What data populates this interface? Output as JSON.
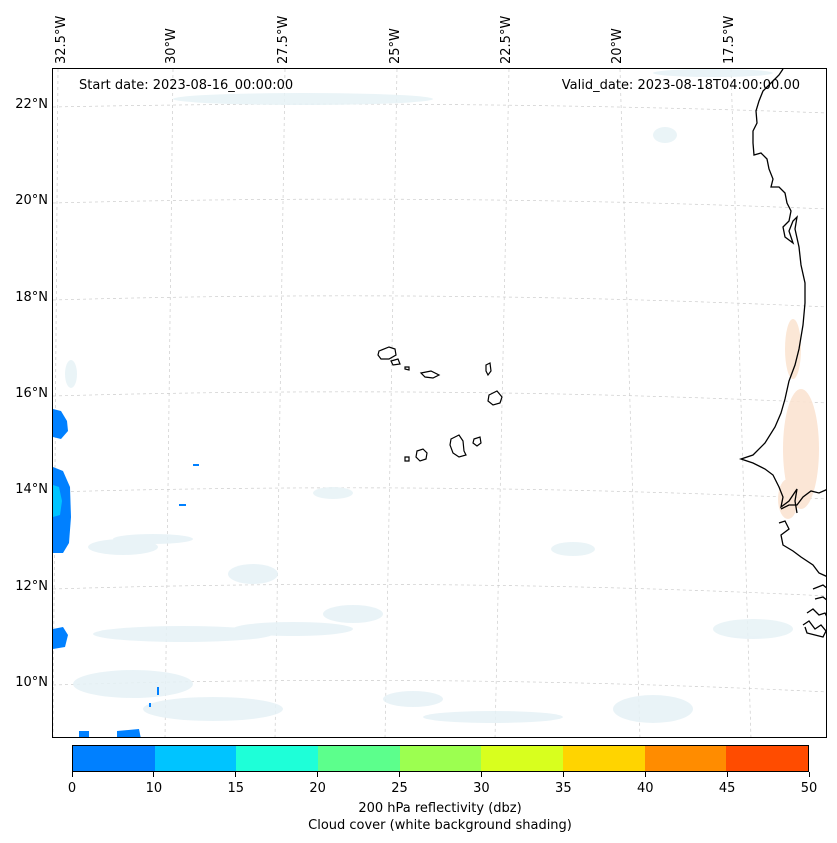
{
  "map": {
    "start_date": "Start date: 2023-08-16_00:00:00",
    "valid_date": "Valid_date: 2023-08-18T04:00:00.00",
    "longitude_labels": [
      "32.5°W",
      "30°W",
      "27.5°W",
      "25°W",
      "22.5°W",
      "20°W",
      "17.5°W"
    ],
    "latitude_labels": [
      "22°N",
      "20°N",
      "18°N",
      "16°N",
      "14°N",
      "12°N",
      "10°N"
    ],
    "region": "Cape Verde Islands and West African coast",
    "land_outline_color": "#000000",
    "cloud_shading_color": "#e6f2f6",
    "warm_shading_color": "#fbe4d2"
  },
  "colorbar": {
    "ticks": [
      "0",
      "10",
      "15",
      "20",
      "25",
      "30",
      "35",
      "40",
      "45",
      "50"
    ],
    "colors": [
      "#0080ff",
      "#00c4ff",
      "#1effd8",
      "#5cff8c",
      "#9cff50",
      "#d8ff1e",
      "#ffd400",
      "#ff8c00",
      "#ff4c00"
    ],
    "title_line1": "200 hPa reflectivity (dbz)",
    "title_line2": "Cloud cover (white background shading)"
  }
}
